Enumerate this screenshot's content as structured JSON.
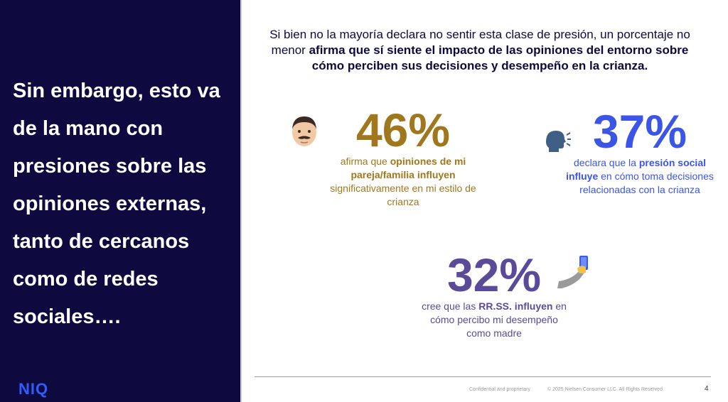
{
  "left": {
    "text": "Sin embargo, esto va de la mano con presiones sobre las opiniones externas, tanto de cercanos como de redes sociales….",
    "logo": "NIQ"
  },
  "headline": {
    "part1": "Si bien no la mayoría declara no sentir esta clase de presión, un porcentaje no menor ",
    "part2_bold": "afirma que sí siente el impacto de las opiniones del entorno sobre cómo perciben sus decisiones y desempeño en la crianza."
  },
  "stats": [
    {
      "value": "46%",
      "pre": "afirma que ",
      "bold": "opiniones de mi pareja/familia influyen",
      "post": " significativamente en mi estilo de crianza",
      "icon": "man-face-icon",
      "color": "#a0771c"
    },
    {
      "value": "37%",
      "pre": "declara que la ",
      "bold": "presión social influye",
      "post": " en cómo toma decisiones relacionadas con la crianza",
      "icon": "speaking-head-icon",
      "color": "#3b55e6"
    },
    {
      "value": "32%",
      "pre": "cree que las ",
      "bold": "RR.SS. influyen",
      "post": " en cómo percibo mi desempeño como madre",
      "icon": "selfie-arm-icon",
      "color": "#5b4a9a"
    }
  ],
  "footer": {
    "confidential": "Confidential and proprietary",
    "copyright": "© 2025 Nielsen Consumer LLC. All Rights Reserved.",
    "page": "4"
  }
}
